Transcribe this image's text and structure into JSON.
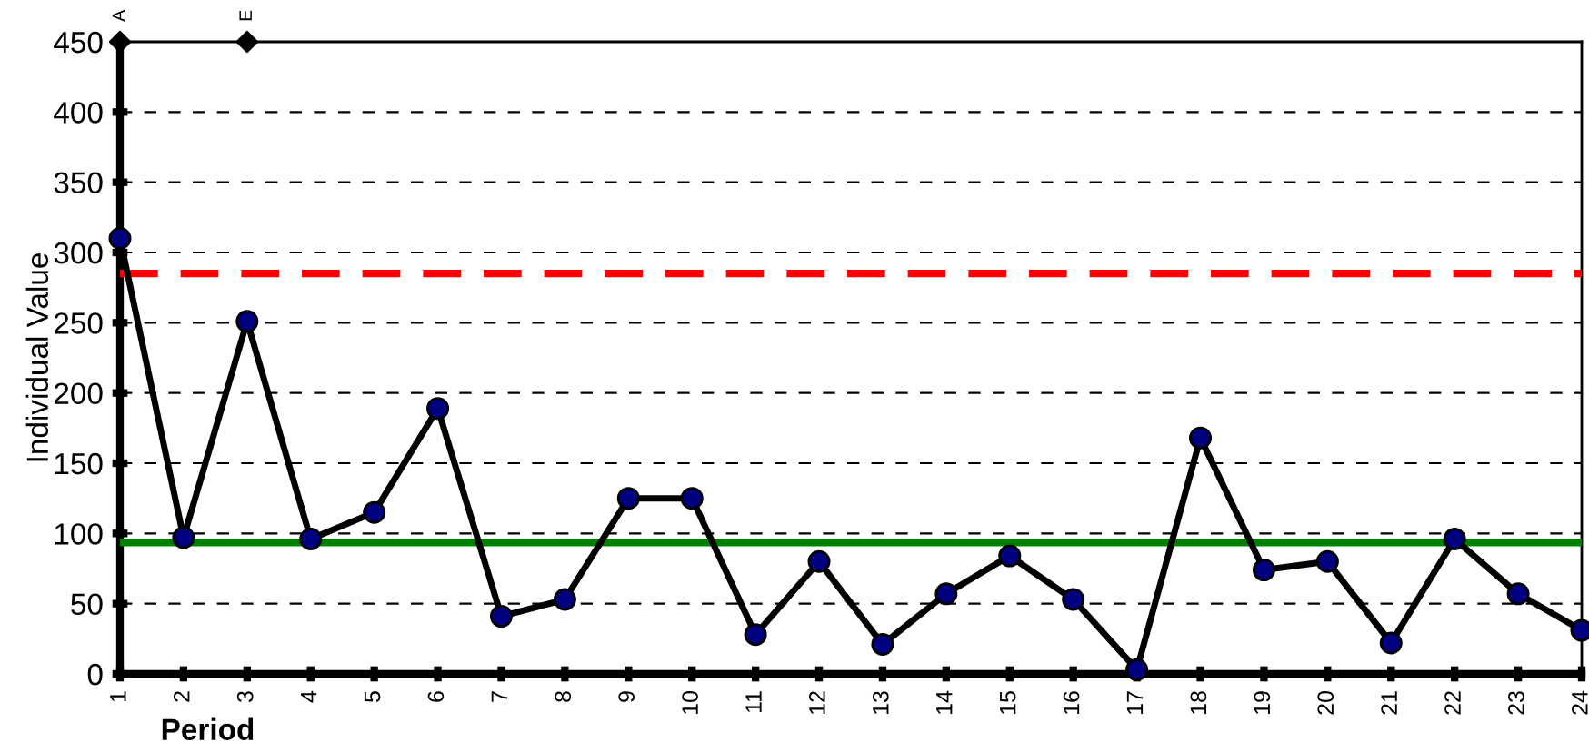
{
  "chart_data": {
    "type": "line",
    "xlabel": "Period",
    "ylabel": "Individual Value",
    "categories": [
      "1",
      "2",
      "3",
      "4",
      "5",
      "6",
      "7",
      "8",
      "9",
      "10",
      "11",
      "12",
      "13",
      "14",
      "15",
      "16",
      "17",
      "18",
      "19",
      "20",
      "21",
      "22",
      "23",
      "24"
    ],
    "series": [
      {
        "color": "#000080",
        "marker": "circle",
        "line_style": "solid",
        "values": [
          310,
          97,
          251,
          96,
          115,
          189,
          41,
          53,
          125,
          125,
          28,
          80,
          21,
          57,
          84,
          53,
          3,
          168,
          74,
          80,
          22,
          96,
          57,
          31
        ]
      },
      {
        "type": "scatter",
        "color": "#000000",
        "marker": "diamond",
        "values": [
          450,
          null,
          450,
          null,
          null,
          null,
          null,
          null,
          null,
          null,
          null,
          null,
          null,
          null,
          null,
          null,
          null,
          null,
          null,
          null,
          null,
          null,
          null,
          null
        ],
        "value_labels": [
          "A",
          null,
          "E",
          null,
          null,
          null,
          null,
          null,
          null,
          null,
          null,
          null,
          null,
          null,
          null,
          null,
          null,
          null,
          null,
          null,
          null,
          null,
          null,
          null
        ]
      }
    ],
    "ref_lines": [
      {
        "axis": "y",
        "value": 285,
        "color": "#ff0000",
        "line_style": "dashed"
      },
      {
        "axis": "y",
        "value": 93.5,
        "color": "#008000",
        "line_style": "solid"
      }
    ],
    "ylim": [
      0,
      450
    ],
    "yticks": [
      0,
      50,
      100,
      150,
      200,
      250,
      300,
      350,
      400,
      450
    ],
    "grid": "y",
    "legend": false
  }
}
